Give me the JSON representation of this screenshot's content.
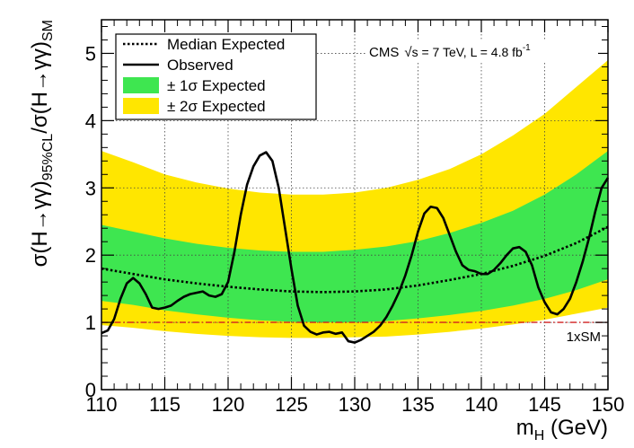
{
  "chart_data": {
    "type": "line",
    "xlim": [
      110,
      150
    ],
    "ylim": [
      0,
      5.5
    ],
    "x_ticks": [
      110,
      115,
      120,
      125,
      130,
      135,
      140,
      145,
      150
    ],
    "y_ticks": [
      0,
      1,
      2,
      3,
      4,
      5
    ],
    "grid": true,
    "legend_placement": "top-left",
    "xlabel": {
      "main": "m",
      "sub": "H",
      "unit": " (GeV)"
    },
    "ylabel": {
      "num": "σ(H→γγ)",
      "num_sub": "95%CL",
      "slash": "/σ(H→γγ)",
      "den_sub": "SM"
    },
    "annotation": {
      "cms": "CMS",
      "sqrt": "√",
      "energy": "s = 7 TeV, L = 4.8 fb",
      "sup": "-1"
    },
    "sm_label": "1xSM",
    "legend": [
      {
        "label": "Median Expected",
        "style": "dotted",
        "color": "#000000"
      },
      {
        "label": "Observed",
        "style": "solid",
        "color": "#000000"
      },
      {
        "label": "± 1σ Expected",
        "style": "fill",
        "color": "#3ee650"
      },
      {
        "label": "± 2σ Expected",
        "style": "fill",
        "color": "#ffe600"
      }
    ],
    "colors": {
      "band1": "#3ee650",
      "band2": "#ffe600",
      "sm_line": "#d22020",
      "observed": "#000000",
      "expected": "#000000"
    },
    "sm_value": 1.0,
    "expected": {
      "x": [
        110,
        112.5,
        115,
        117.5,
        120,
        122.5,
        125,
        127.5,
        130,
        132.5,
        135,
        137.5,
        140,
        142.5,
        145,
        147.5,
        150
      ],
      "median": [
        1.8,
        1.72,
        1.64,
        1.58,
        1.53,
        1.49,
        1.46,
        1.45,
        1.46,
        1.49,
        1.55,
        1.63,
        1.72,
        1.84,
        1.99,
        2.18,
        2.42
      ],
      "minus1": [
        1.32,
        1.26,
        1.18,
        1.12,
        1.07,
        1.03,
        1.01,
        1.0,
        1.0,
        1.02,
        1.06,
        1.11,
        1.17,
        1.25,
        1.35,
        1.48,
        1.64
      ],
      "plus1": [
        2.45,
        2.35,
        2.25,
        2.17,
        2.11,
        2.07,
        2.05,
        2.05,
        2.08,
        2.13,
        2.21,
        2.33,
        2.48,
        2.66,
        2.9,
        3.2,
        3.55
      ],
      "minus2": [
        0.96,
        0.92,
        0.87,
        0.83,
        0.8,
        0.78,
        0.77,
        0.77,
        0.78,
        0.79,
        0.82,
        0.86,
        0.91,
        0.97,
        1.04,
        1.13,
        1.22
      ],
      "plus2": [
        3.55,
        3.38,
        3.2,
        3.08,
        2.99,
        2.93,
        2.9,
        2.9,
        2.93,
        3.0,
        3.12,
        3.28,
        3.5,
        3.78,
        4.1,
        4.5,
        4.9
      ]
    },
    "observed": {
      "x": [
        110,
        110.5,
        111,
        111.5,
        112,
        112.5,
        113,
        113.5,
        114,
        114.5,
        115,
        115.5,
        116,
        116.5,
        117,
        117.5,
        118,
        118.5,
        119,
        119.5,
        120,
        120.5,
        121,
        121.5,
        122,
        122.5,
        123,
        123.5,
        124,
        124.5,
        125,
        125.5,
        126,
        126.5,
        127,
        127.5,
        128,
        128.5,
        129,
        129.5,
        130,
        130.5,
        131,
        131.5,
        132,
        132.5,
        133,
        133.5,
        134,
        134.5,
        135,
        135.5,
        136,
        136.5,
        137,
        137.5,
        138,
        138.5,
        139,
        139.5,
        140,
        140.5,
        141,
        141.5,
        142,
        142.5,
        143,
        143.5,
        144,
        144.5,
        145,
        145.5,
        146,
        146.5,
        147,
        147.5,
        148,
        148.5,
        149,
        149.5,
        150
      ],
      "y": [
        0.84,
        0.88,
        1.05,
        1.35,
        1.58,
        1.66,
        1.58,
        1.42,
        1.22,
        1.2,
        1.22,
        1.25,
        1.32,
        1.38,
        1.42,
        1.44,
        1.46,
        1.4,
        1.38,
        1.42,
        1.6,
        2.05,
        2.6,
        3.05,
        3.32,
        3.48,
        3.53,
        3.4,
        3.0,
        2.4,
        1.8,
        1.25,
        0.95,
        0.86,
        0.82,
        0.85,
        0.86,
        0.83,
        0.85,
        0.72,
        0.7,
        0.74,
        0.8,
        0.86,
        0.95,
        1.08,
        1.25,
        1.45,
        1.7,
        2.0,
        2.35,
        2.62,
        2.72,
        2.7,
        2.55,
        2.3,
        2.05,
        1.85,
        1.78,
        1.76,
        1.72,
        1.72,
        1.78,
        1.88,
        2.0,
        2.1,
        2.12,
        2.05,
        1.85,
        1.52,
        1.3,
        1.15,
        1.12,
        1.2,
        1.35,
        1.6,
        1.9,
        2.25,
        2.65,
        3.0,
        3.15
      ]
    }
  }
}
